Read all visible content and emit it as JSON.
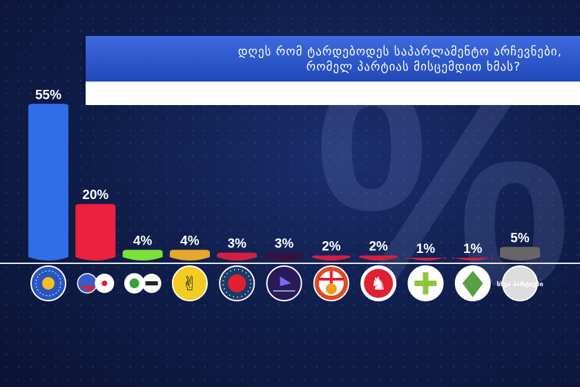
{
  "title_line1": "დღეს რომ ტარდებოდეს საპარლამენტო არჩევნები,",
  "title_line2": "რომელ პარტიას მისცემდით ხმას?",
  "background_symbol": "%",
  "chart_data": {
    "type": "bar",
    "title": "დღეს რომ ტარდებოდეს საპარლამენტო არჩევნები, რომელ პარტიას მისცემდით ხმას?",
    "unit": "%",
    "ylim": [
      0,
      60
    ],
    "categories": [
      "georgian-dream-logo",
      "unm-coalition-logos",
      "coalition-green-logos",
      "victory-hand-logo",
      "red-star-ring-logo",
      "purple-arrow-logo",
      "georgia-map-logo",
      "red-horse-logo",
      "green-cross-logo",
      "green-cone-logo",
      "other-parties-logo"
    ],
    "values": [
      55,
      20,
      4,
      4,
      3,
      3,
      2,
      2,
      1,
      1,
      5
    ],
    "labels": [
      "55%",
      "20%",
      "4%",
      "4%",
      "3%",
      "3%",
      "2%",
      "2%",
      "1%",
      "1%",
      "5%"
    ],
    "colors": [
      "#2f6ee8",
      "#ee2040",
      "#7de03a",
      "#e6a82a",
      "#d42040",
      "#3a1040",
      "#d42040",
      "#d42040",
      "#d42040",
      "#d42040",
      "#666666"
    ],
    "other_label": "სხვა პარტიები"
  }
}
